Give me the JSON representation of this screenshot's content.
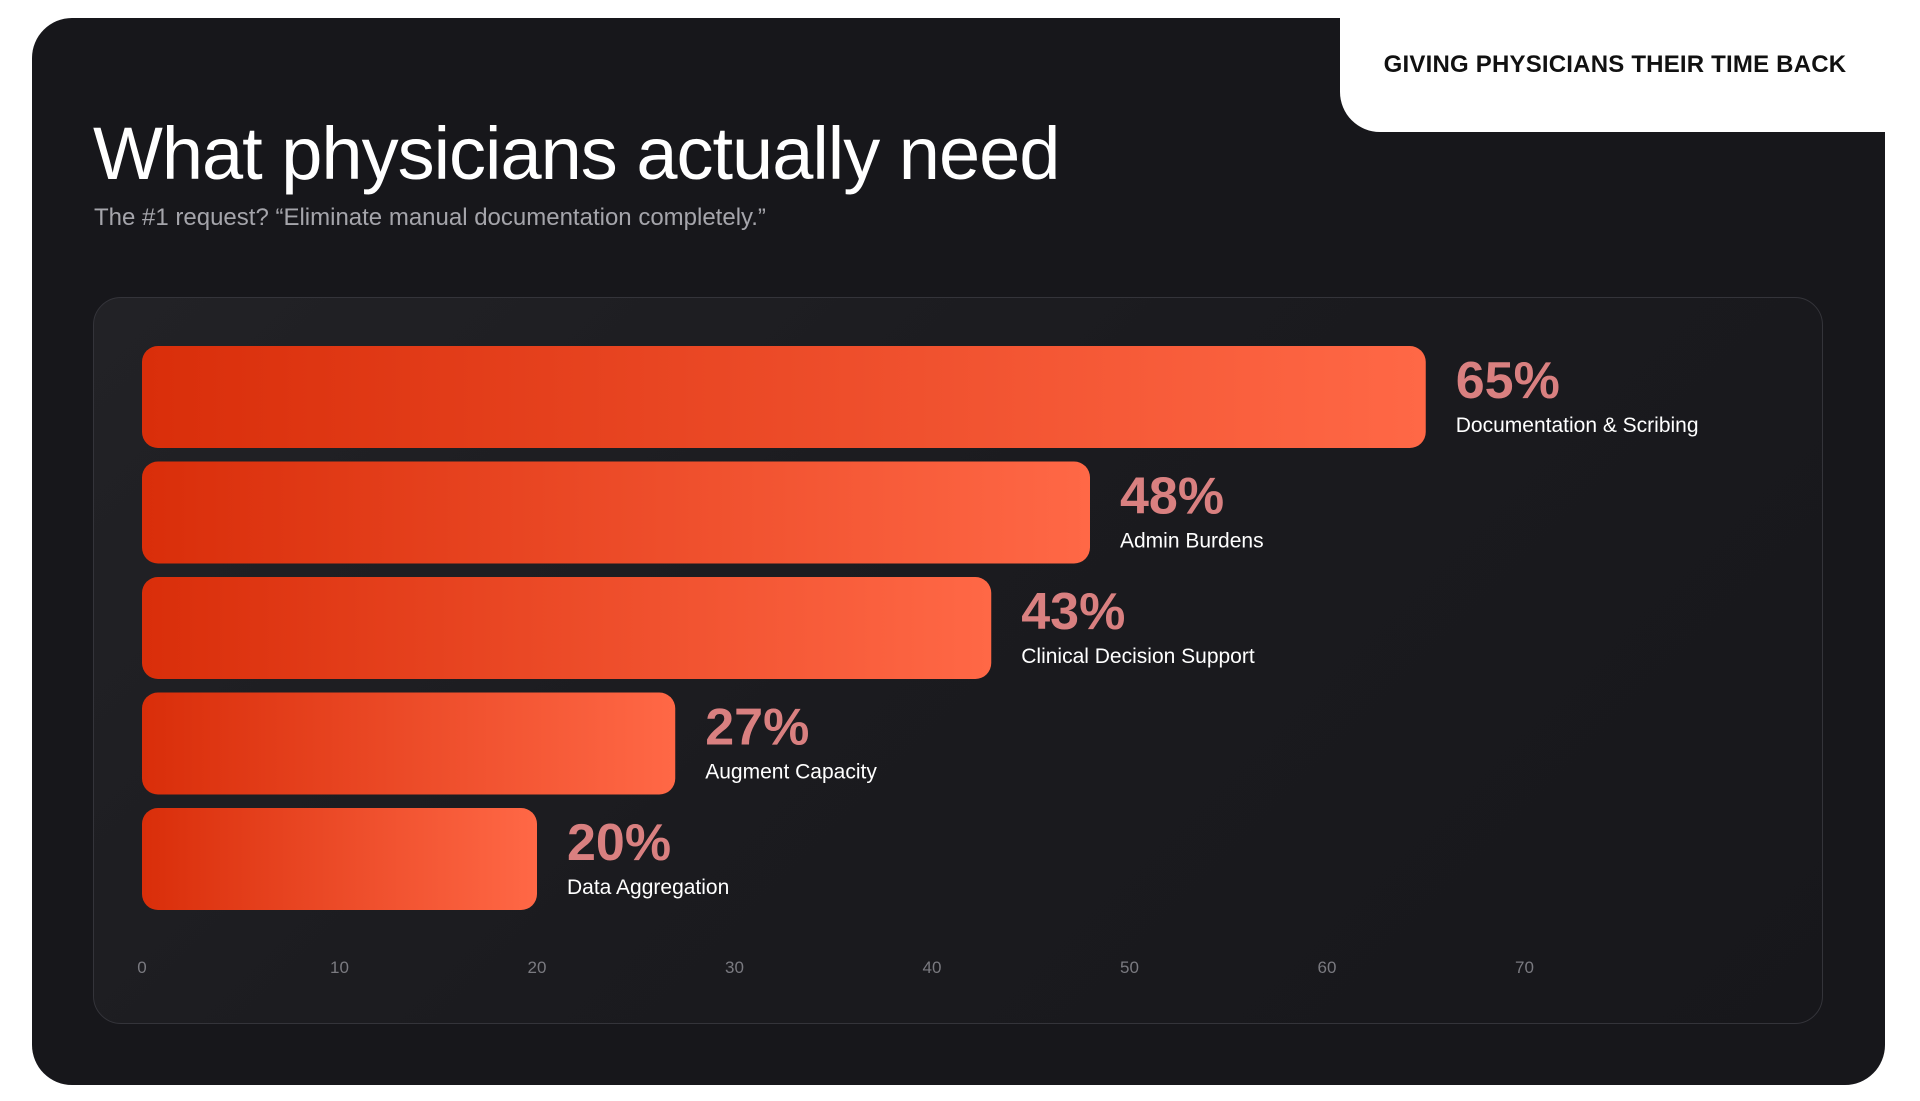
{
  "header": {
    "title": "What physicians actually need",
    "subtitle": "The #1 request? “Eliminate manual documentation completely.”",
    "tag": "GIVING PHYSICIANS THEIR TIME BACK"
  },
  "colors": {
    "bar_start": "#d92e0a",
    "bar_end": "#ff6846",
    "value_label": "#d98080",
    "category_label": "#ffffff",
    "tick_label": "#7a7a80"
  },
  "chart_data": {
    "type": "bar",
    "orientation": "horizontal",
    "categories": [
      "Documentation & Scribing",
      "Admin Burdens",
      "Clinical Decision Support",
      "Augment Capacity",
      "Data Aggregation"
    ],
    "values": [
      65,
      48,
      43,
      27,
      20
    ],
    "value_labels": [
      "65%",
      "48%",
      "43%",
      "27%",
      "20%"
    ],
    "xticks": [
      "0",
      "10",
      "20",
      "30",
      "40",
      "50",
      "60",
      "70"
    ],
    "xlim": [
      0,
      70
    ],
    "grid": false,
    "legend": "none"
  }
}
